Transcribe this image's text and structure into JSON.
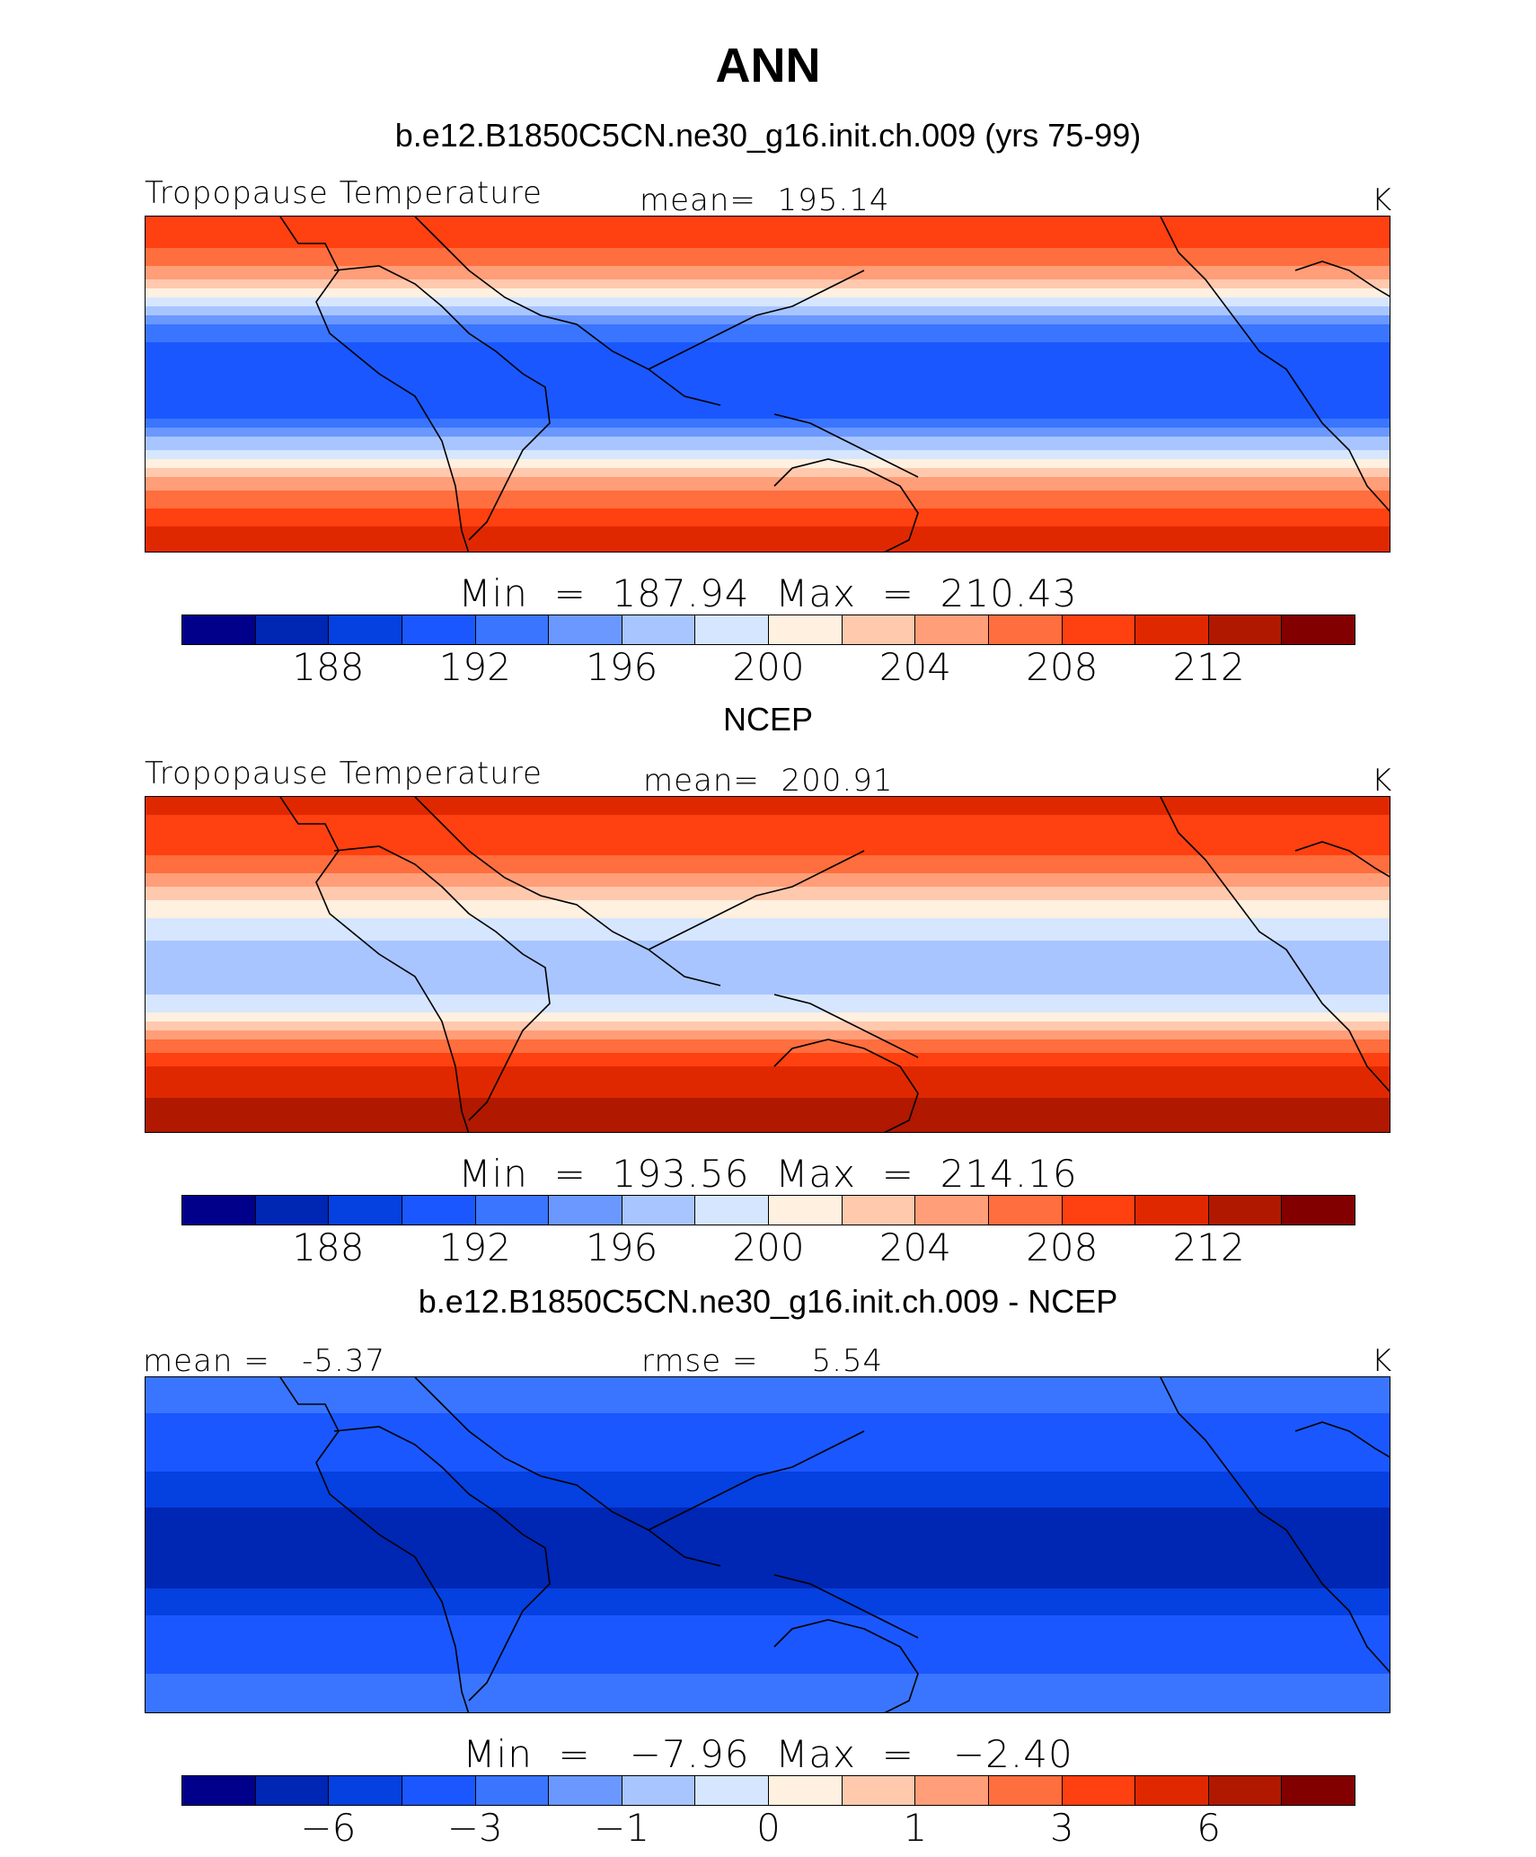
{
  "figure": {
    "title": "ANN",
    "colors": [
      "#00008b",
      "#0026b4",
      "#0540e0",
      "#1a57ff",
      "#3a75ff",
      "#6a98ff",
      "#a8c5ff",
      "#d6e6ff",
      "#fff0e0",
      "#ffc9ae",
      "#ff9e78",
      "#ff6e3e",
      "#ff4010",
      "#e02800",
      "#b01800",
      "#820000"
    ]
  },
  "chart_data": [
    {
      "type": "heatmap",
      "panel_title": "b.e12.B1850C5CN.ne30_g16.init.ch.009 (yrs 75-99)",
      "left_label": "Tropopause Temperature",
      "center_label": "mean=  195.14",
      "right_label": "K",
      "min_label": "Min",
      "min_value": "187.94",
      "max_label": "Max",
      "max_value": "210.43",
      "colorbar_ticks": [
        "188",
        "192",
        "196",
        "200",
        "204",
        "208",
        "212"
      ],
      "levels": [
        186,
        188,
        190,
        192,
        194,
        196,
        198,
        200,
        202,
        204,
        206,
        208,
        210,
        212,
        214
      ],
      "x": [
        -180,
        180
      ],
      "y": [
        -90,
        90
      ],
      "zonal_profile": {
        "lat": [
          -90,
          -80,
          -70,
          -60,
          -50,
          -40,
          -30,
          -20,
          -10,
          0,
          10,
          20,
          30,
          40,
          50,
          60,
          70,
          80,
          90
        ],
        "value": [
          211,
          210.5,
          209,
          207,
          204,
          200.5,
          196.5,
          192.5,
          190.5,
          190,
          190.5,
          191.5,
          193.5,
          197.5,
          201.5,
          205,
          207.5,
          209,
          209.5
        ]
      }
    },
    {
      "type": "heatmap",
      "panel_title": "NCEP",
      "left_label": "Tropopause Temperature",
      "center_label": "mean=  200.91",
      "right_label": "K",
      "min_label": "Min",
      "min_value": "193.56",
      "max_label": "Max",
      "max_value": "214.16",
      "colorbar_ticks": [
        "188",
        "192",
        "196",
        "200",
        "204",
        "208",
        "212"
      ],
      "levels": [
        186,
        188,
        190,
        192,
        194,
        196,
        198,
        200,
        202,
        204,
        206,
        208,
        210,
        212,
        214
      ],
      "x": [
        -180,
        180
      ],
      "y": [
        -90,
        90
      ],
      "zonal_profile": {
        "lat": [
          -90,
          -80,
          -70,
          -60,
          -50,
          -40,
          -30,
          -20,
          -10,
          0,
          10,
          20,
          30,
          40,
          50,
          60,
          70,
          80,
          90
        ],
        "value": [
          214,
          213,
          212,
          211,
          209,
          206,
          202,
          198.5,
          197,
          197,
          197.5,
          199,
          201,
          203.5,
          206,
          208,
          209.5,
          210,
          210
        ]
      }
    },
    {
      "type": "heatmap",
      "panel_title": "b.e12.B1850C5CN.ne30_g16.init.ch.009 - NCEP",
      "left_label": "mean =   -5.37",
      "center_label": "rmse =     5.54",
      "right_label": "K",
      "min_label": "Min",
      "min_value": "−7.96",
      "max_label": "Max",
      "max_value": "−2.40",
      "colorbar_ticks": [
        "−6",
        "−3",
        "−1",
        "0",
        "1",
        "3",
        "6"
      ],
      "levels": [
        -8,
        -6,
        -5,
        -4,
        -3,
        -2,
        -1,
        -0.5,
        0,
        0.5,
        1,
        2,
        3,
        4,
        5,
        6,
        8
      ],
      "x": [
        -180,
        180
      ],
      "y": [
        -90,
        90
      ],
      "zonal_profile": {
        "lat": [
          -90,
          -60,
          -40,
          -20,
          -10,
          0,
          10,
          20,
          40,
          60,
          90
        ],
        "value": [
          -3.5,
          -4.2,
          -4.8,
          -6.2,
          -6.8,
          -7.0,
          -6.8,
          -6.0,
          -5.0,
          -4.2,
          -3.6
        ]
      }
    }
  ]
}
